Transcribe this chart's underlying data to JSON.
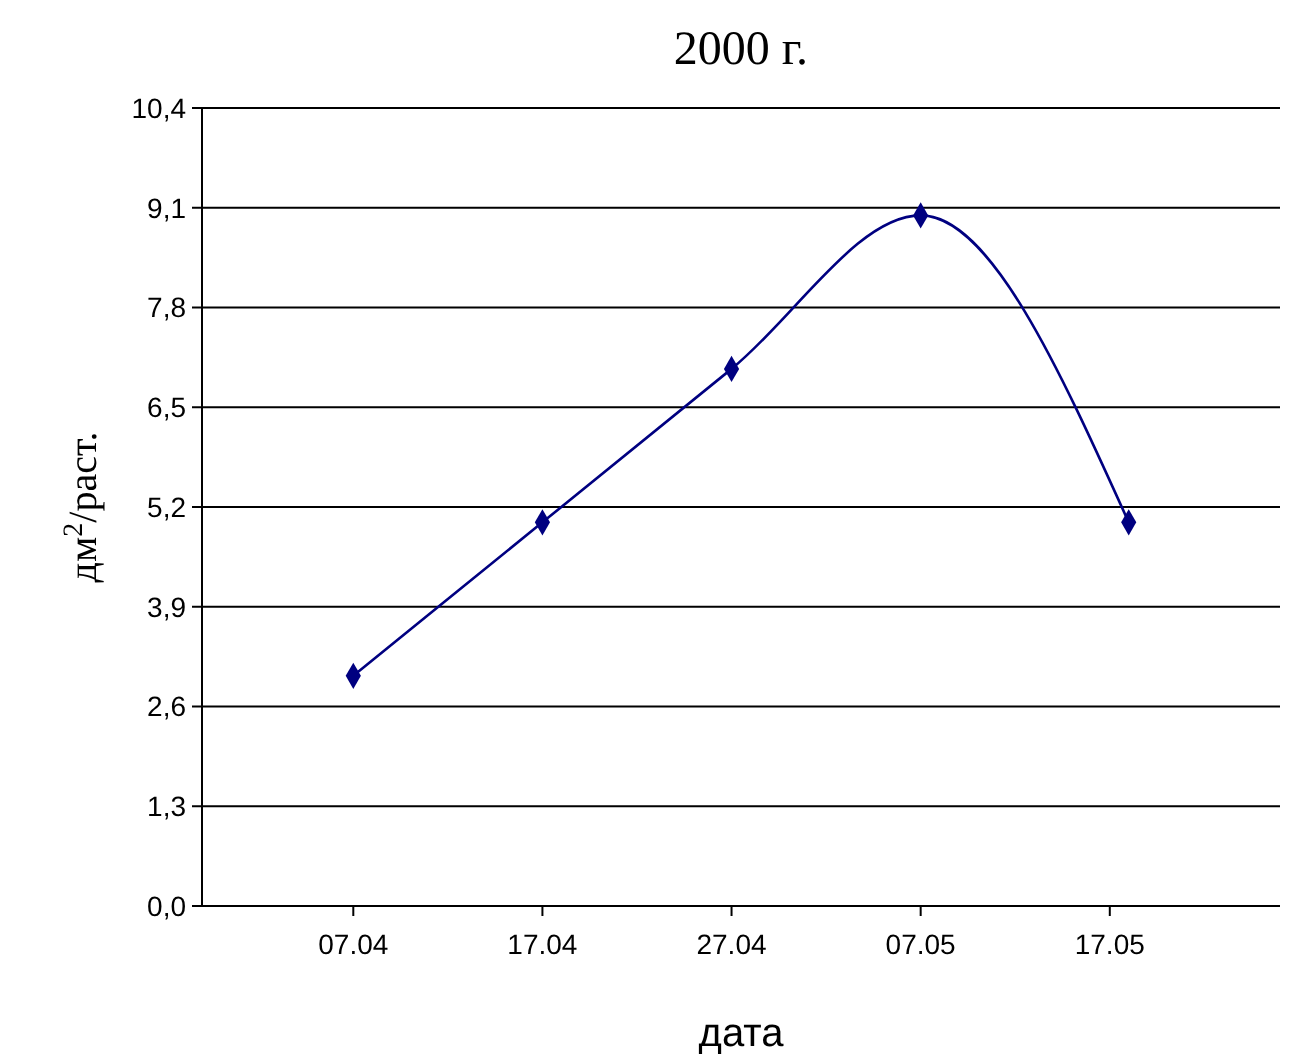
{
  "chart_data": {
    "type": "line",
    "title": "2000 г.",
    "xlabel": "дата",
    "ylabel": "дм$^{2}$/раст.",
    "x": [
      "2000-04-07",
      "2000-04-17",
      "2000-04-27",
      "2000-05-07",
      "2000-05-18"
    ],
    "series": [
      {
        "color": "#000080",
        "values": [
          3.0,
          5.0,
          7.0,
          9.0,
          5.0
        ]
      }
    ],
    "xlim": [
      "2000-03-30",
      "2000-05-26"
    ],
    "xticks": [
      {
        "value": "2000-04-07",
        "label": "07.04"
      },
      {
        "value": "2000-04-17",
        "label": "17.04"
      },
      {
        "value": "2000-04-27",
        "label": "27.04"
      },
      {
        "value": "2000-05-07",
        "label": "07.05"
      },
      {
        "value": "2000-05-17",
        "label": "17.05"
      }
    ],
    "ylim": [
      0,
      10.4
    ],
    "yticks": [
      {
        "value": 0,
        "label": "0,0"
      },
      {
        "value": 1.3,
        "label": "1,3"
      },
      {
        "value": 2.6,
        "label": "2,6"
      },
      {
        "value": 3.9,
        "label": "3,9"
      },
      {
        "value": 5.2,
        "label": "5,2"
      },
      {
        "value": 6.5,
        "label": "6,5"
      },
      {
        "value": 7.8,
        "label": "7,8"
      },
      {
        "value": 9.1,
        "label": "9,1"
      },
      {
        "value": 10.4,
        "label": "10,4"
      }
    ],
    "grid": "y",
    "marker": "diamond",
    "line_style": "solid"
  }
}
